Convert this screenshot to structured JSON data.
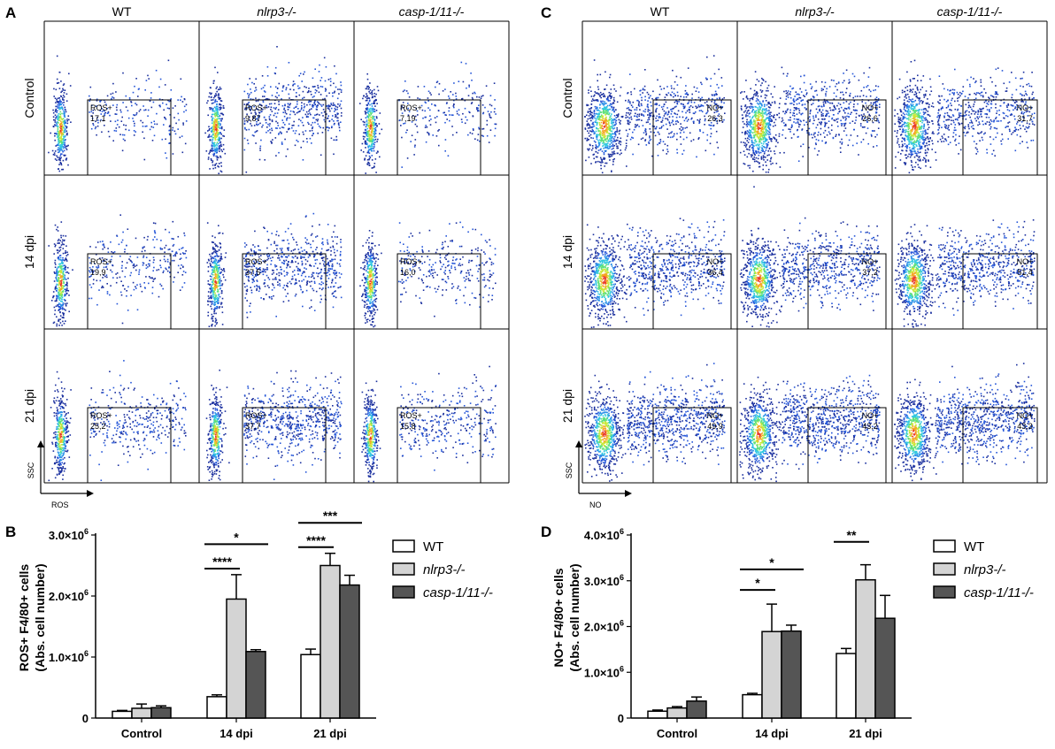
{
  "panels": {
    "A": "A",
    "B": "B",
    "C": "C",
    "D": "D"
  },
  "flow_columns": [
    "WT",
    "nlrp3-/-",
    "casp-1/11-/-"
  ],
  "flow_rows": [
    "Control",
    "14 dpi",
    "21 dpi"
  ],
  "flowA": {
    "gate_name": "ROS+",
    "x_axis": "ROS",
    "y_axis": "SSC",
    "values": [
      [
        "17,1",
        "9,87",
        "7,19"
      ],
      [
        "19,9",
        "37,5",
        "16,0"
      ],
      [
        "25,2",
        "37,7",
        "15,8"
      ]
    ]
  },
  "flowC": {
    "gate_name": "NO+",
    "x_axis": "NO",
    "y_axis": "SSC",
    "values": [
      [
        "26,3",
        "26,6",
        "31,7"
      ],
      [
        "36,4",
        "37,2",
        "51,4"
      ],
      [
        "49,9",
        "43,2",
        "43,3"
      ]
    ]
  },
  "legend": {
    "wt": "WT",
    "nlrp3": "nlrp3-/-",
    "casp": "casp-1/11-/-"
  },
  "colors": {
    "wt": "#ffffff",
    "nlrp3": "#d4d4d4",
    "casp": "#555555",
    "stroke": "#000000"
  },
  "chart_data": [
    {
      "type": "bar",
      "panel": "B",
      "ylabel_line1": "ROS+ F4/80+ cells",
      "ylabel_line2": "(Abs. cell number)",
      "categories": [
        "Control",
        "14 dpi",
        "21 dpi"
      ],
      "yticks": [
        0,
        1000000,
        2000000,
        3000000
      ],
      "ytick_labels": [
        {
          "base": "0",
          "exp": ""
        },
        {
          "base": "1.0×10",
          "exp": "6"
        },
        {
          "base": "2.0×10",
          "exp": "6"
        },
        {
          "base": "3.0×10",
          "exp": "6"
        }
      ],
      "ylim": [
        0,
        3000000
      ],
      "series": [
        {
          "name": "WT",
          "values": [
            110000,
            350000,
            1040000
          ],
          "errors": [
            15000,
            30000,
            90000
          ]
        },
        {
          "name": "nlrp3-/-",
          "values": [
            160000,
            1950000,
            2500000
          ],
          "errors": [
            70000,
            400000,
            200000
          ]
        },
        {
          "name": "casp-1/11-/-",
          "values": [
            170000,
            1090000,
            2180000
          ],
          "errors": [
            30000,
            30000,
            160000
          ]
        }
      ],
      "significance": [
        {
          "cat": 1,
          "from": 0,
          "to": 1,
          "label": "****",
          "y": 2450000
        },
        {
          "cat": 1,
          "from": 0,
          "to": 2,
          "label": "*",
          "y": 2850000
        },
        {
          "cat": 2,
          "from": 0,
          "to": 1,
          "label": "****",
          "y": 2800000
        },
        {
          "cat": 2,
          "from": 0,
          "to": 2,
          "label": "***",
          "y": 3200000
        }
      ]
    },
    {
      "type": "bar",
      "panel": "D",
      "ylabel_line1": "NO+ F4/80+ cells",
      "ylabel_line2": "(Abs. cell number)",
      "categories": [
        "Control",
        "14 dpi",
        "21 dpi"
      ],
      "yticks": [
        0,
        1000000,
        2000000,
        3000000,
        4000000
      ],
      "ytick_labels": [
        {
          "base": "0",
          "exp": ""
        },
        {
          "base": "1.0×10",
          "exp": "6"
        },
        {
          "base": "2.0×10",
          "exp": "6"
        },
        {
          "base": "3.0×10",
          "exp": "6"
        },
        {
          "base": "4.0×10",
          "exp": "6"
        }
      ],
      "ylim": [
        0,
        4000000
      ],
      "series": [
        {
          "name": "WT",
          "values": [
            150000,
            510000,
            1410000
          ],
          "errors": [
            25000,
            30000,
            110000
          ]
        },
        {
          "name": "nlrp3-/-",
          "values": [
            220000,
            1890000,
            3020000
          ],
          "errors": [
            30000,
            600000,
            330000
          ]
        },
        {
          "name": "casp-1/11-/-",
          "values": [
            370000,
            1900000,
            2180000
          ],
          "errors": [
            90000,
            130000,
            500000
          ]
        }
      ],
      "significance": [
        {
          "cat": 1,
          "from": 0,
          "to": 1,
          "label": "*",
          "y": 2800000
        },
        {
          "cat": 1,
          "from": 0,
          "to": 2,
          "label": "*",
          "y": 3250000
        },
        {
          "cat": 2,
          "from": 0,
          "to": 1,
          "label": "**",
          "y": 3850000
        }
      ]
    }
  ]
}
